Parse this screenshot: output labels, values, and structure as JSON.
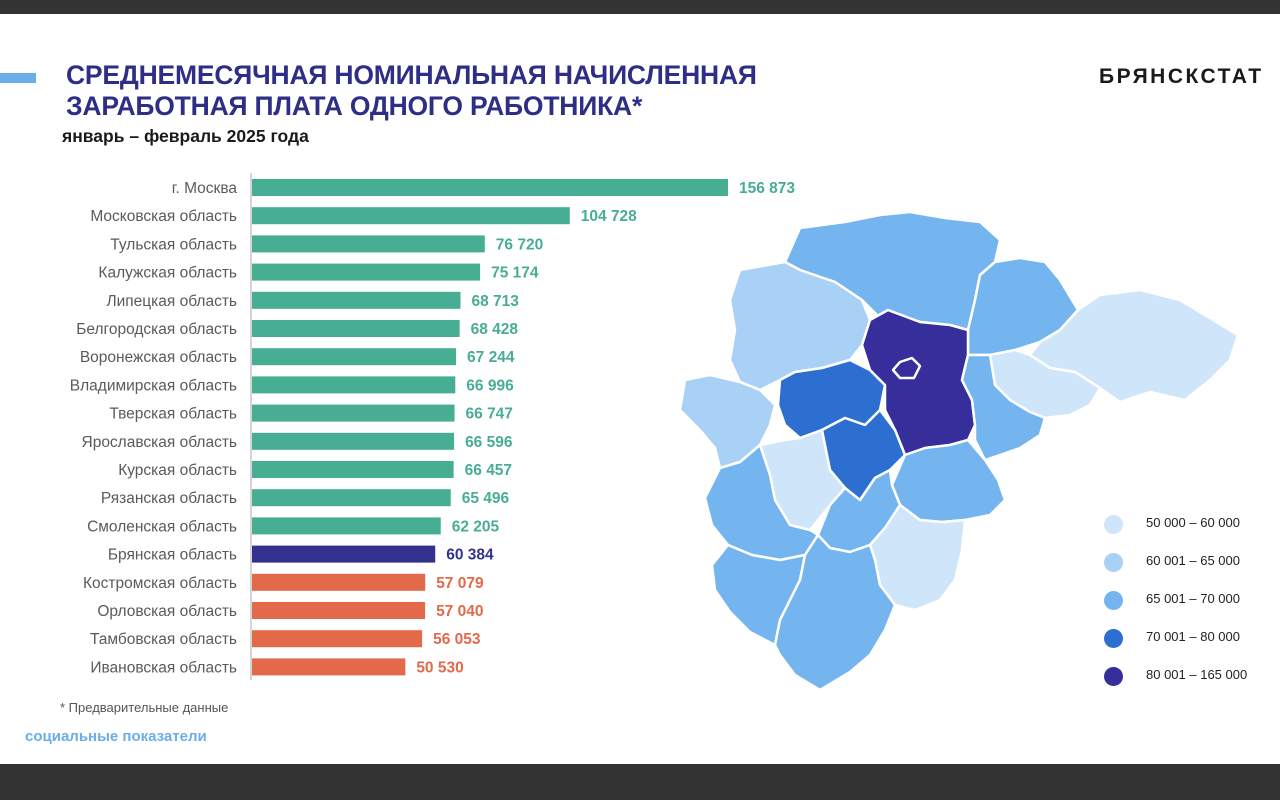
{
  "header": {
    "title_line1": "СРЕДНЕМЕСЯЧНАЯ НОМИНАЛЬНАЯ НАЧИСЛЕННАЯ",
    "title_line2": "ЗАРАБОТНАЯ ПЛАТА ОДНОГО РАБОТНИКА*",
    "subtitle": "январь – февраль  2025 года",
    "brand": "БРЯНСКСТАТ"
  },
  "footer": {
    "note": "* Предварительные данные",
    "section": "социальные показатели"
  },
  "colors": {
    "above": "#47ad93",
    "highlight": "#33318f",
    "below": "#e2694a",
    "title": "#2e2e86",
    "accent": "#6aaee8"
  },
  "chart_data": {
    "type": "bar",
    "orientation": "horizontal",
    "categories": [
      "г. Москва",
      "Московская область",
      "Тульская область",
      "Калужская область",
      "Липецкая область",
      "Белгородская область",
      "Воронежская область",
      "Владимирская область",
      "Тверская область",
      "Ярославская область",
      "Курская область",
      "Рязанская область",
      "Смоленская область",
      "Брянская область",
      "Костромская область",
      "Орловская область",
      "Тамбовская область",
      "Ивановская область"
    ],
    "values": [
      156873,
      104728,
      76720,
      75174,
      68713,
      68428,
      67244,
      66996,
      66747,
      66596,
      66457,
      65496,
      62205,
      60384,
      57079,
      57040,
      56053,
      50530
    ],
    "value_labels": [
      "156 873",
      "104 728",
      "76 720",
      "75 174",
      "68 713",
      "68 428",
      "67 244",
      "66 996",
      "66 747",
      "66 596",
      "66 457",
      "65 496",
      "62 205",
      "60 384",
      "57 079",
      "57 040",
      "56 053",
      "50 530"
    ],
    "highlight": "Брянская область",
    "xlim": [
      0,
      156873
    ],
    "grid": false,
    "legend": "none"
  },
  "map_legend": [
    {
      "label": "50 000 –  60 000",
      "color": "#cfe5fa"
    },
    {
      "label": "60 001 –  65 000",
      "color": "#a9d1f6"
    },
    {
      "label": "65 001 – 70 000",
      "color": "#74b5f0"
    },
    {
      "label": "70  001 – 80 000",
      "color": "#2d6fd0"
    },
    {
      "label": "80 001 – 165 000",
      "color": "#352e9b"
    }
  ]
}
